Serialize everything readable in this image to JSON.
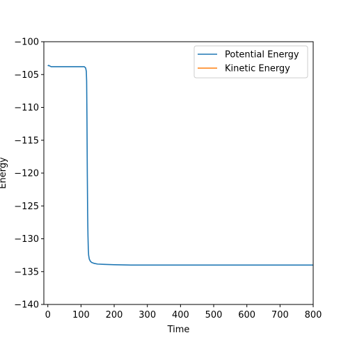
{
  "chart_data": {
    "type": "line",
    "title": "",
    "xlabel": "Time",
    "ylabel": "Energy",
    "xlim": [
      -12,
      800
    ],
    "ylim": [
      -140,
      -100
    ],
    "xticks": [
      0,
      100,
      200,
      300,
      400,
      500,
      600,
      700,
      800
    ],
    "yticks": [
      -100,
      -105,
      -110,
      -115,
      -120,
      -125,
      -130,
      -135,
      -140
    ],
    "xtick_labels": [
      "0",
      "100",
      "200",
      "300",
      "400",
      "500",
      "600",
      "700",
      "800"
    ],
    "ytick_labels": [
      "−100",
      "−105",
      "−110",
      "−115",
      "−120",
      "−125",
      "−130",
      "−135",
      "−140"
    ],
    "grid": false,
    "legend_position": "top-right",
    "series": [
      {
        "name": "Potential Energy",
        "color": "#1f77b4",
        "x": [
          0,
          2,
          10,
          50,
          100,
          110,
          114,
          116,
          117,
          118,
          119,
          120,
          121,
          122,
          123,
          125,
          128,
          132,
          140,
          150,
          170,
          200,
          250,
          300,
          400,
          500,
          600,
          700,
          800
        ],
        "y": [
          -103.7,
          -103.6,
          -103.8,
          -103.8,
          -103.8,
          -103.8,
          -104.0,
          -104.5,
          -106.0,
          -112.0,
          -120.0,
          -126.0,
          -129.5,
          -131.5,
          -132.5,
          -133.1,
          -133.4,
          -133.6,
          -133.75,
          -133.85,
          -133.9,
          -133.95,
          -134.0,
          -134.0,
          -134.0,
          -134.0,
          -134.0,
          -134.0,
          -134.0
        ]
      },
      {
        "name": "Kinetic Energy",
        "color": "#ff7f0e",
        "x": [],
        "y": []
      }
    ]
  }
}
